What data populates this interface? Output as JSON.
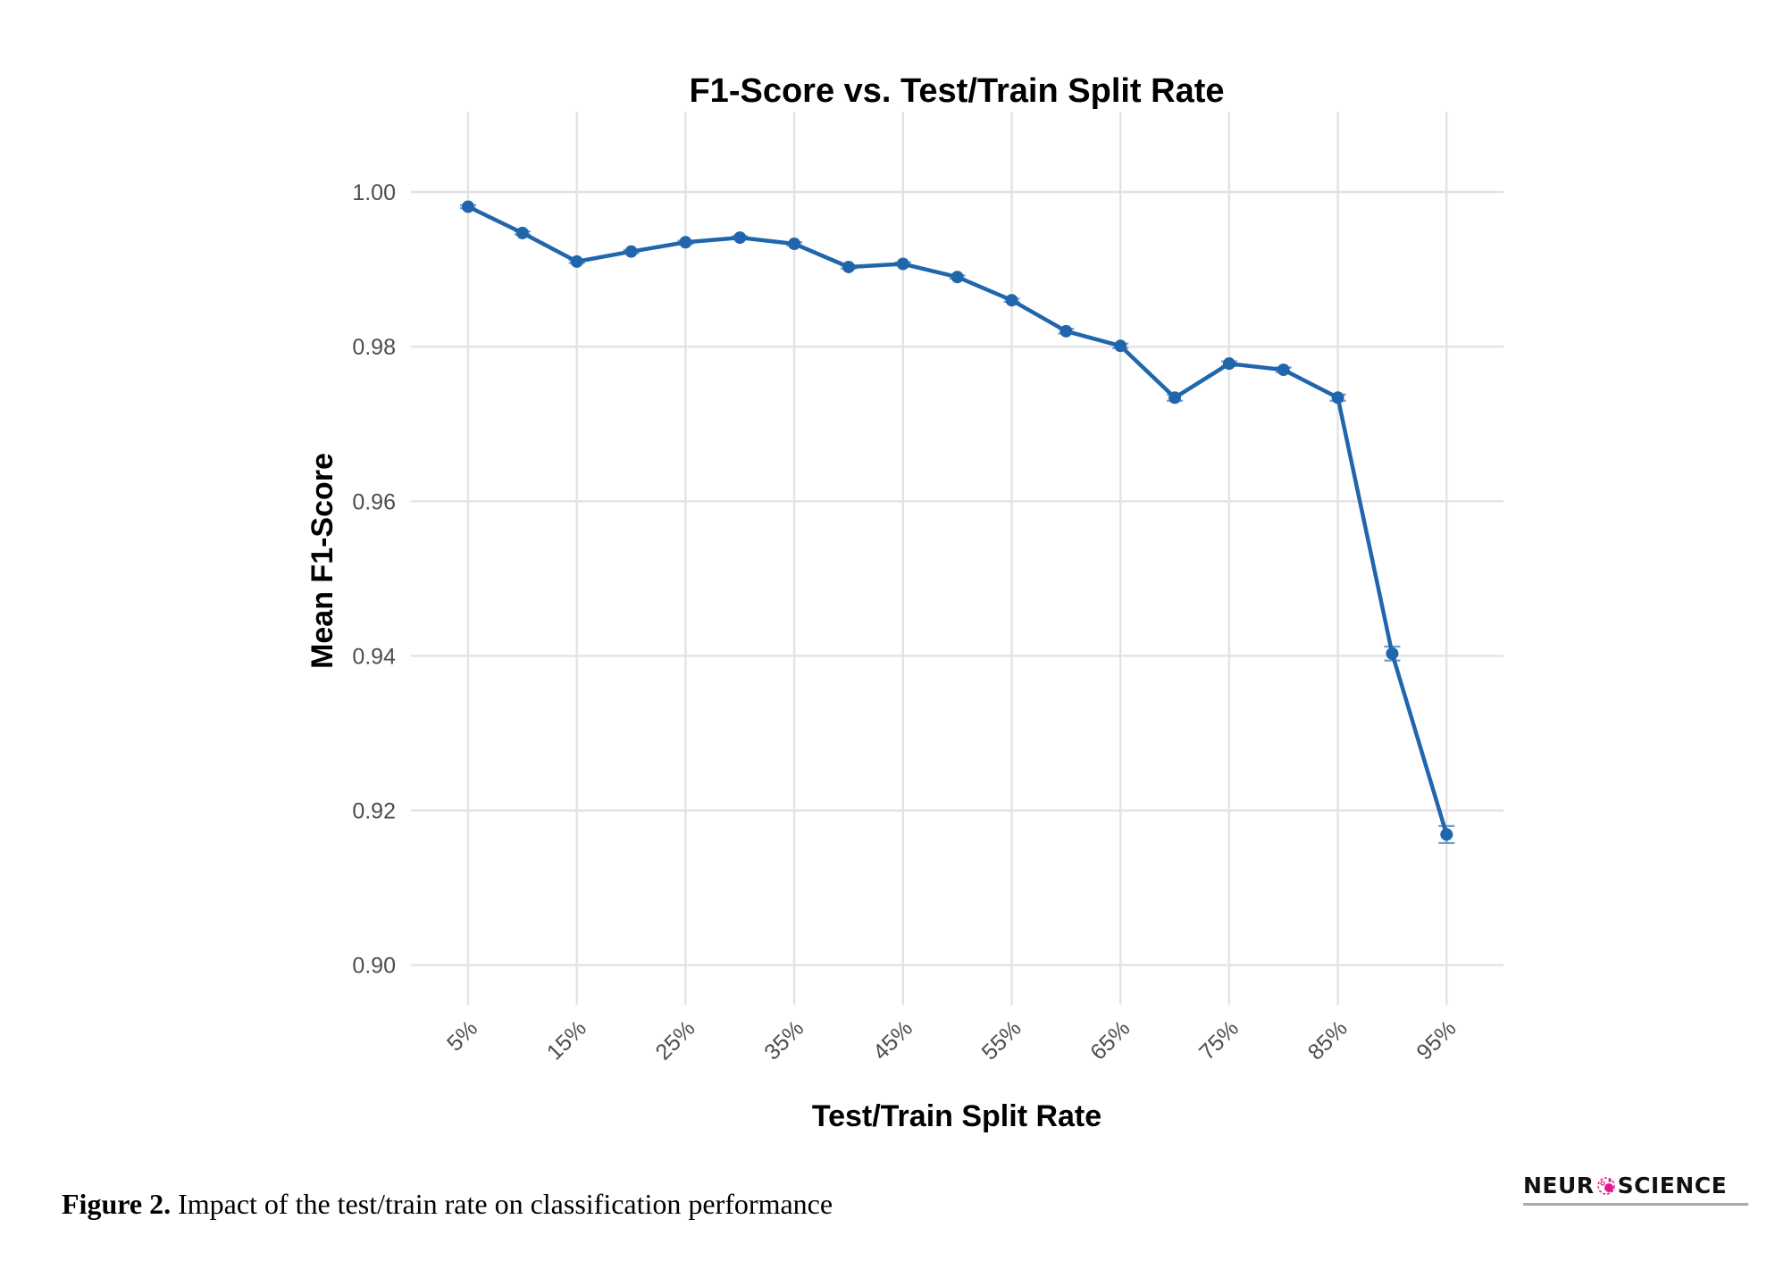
{
  "chart_data": {
    "type": "line",
    "title": "F1-Score vs. Test/Train Split Rate",
    "xlabel": "Test/Train Split Rate",
    "ylabel": "Mean F1-Score",
    "x": [
      "5%",
      "10%",
      "15%",
      "20%",
      "25%",
      "30%",
      "35%",
      "40%",
      "45%",
      "50%",
      "55%",
      "60%",
      "65%",
      "70%",
      "75%",
      "80%",
      "85%",
      "90%",
      "95%"
    ],
    "x_tick_labels": [
      "5%",
      "15%",
      "25%",
      "35%",
      "45%",
      "55%",
      "65%",
      "75%",
      "85%",
      "95%"
    ],
    "y_tick_labels": [
      "0.90",
      "0.92",
      "0.94",
      "0.96",
      "0.98",
      "1.00"
    ],
    "y_ticks": [
      0.9,
      0.92,
      0.94,
      0.96,
      0.98,
      1.0
    ],
    "ylim": [
      0.8965,
      1.0103
    ],
    "grid": true,
    "legend": "none",
    "series": [
      {
        "name": "Mean F1-Score",
        "color": "#2166ac",
        "error_bar_color": "#6f9ccf",
        "values": [
          0.9981,
          0.9947,
          0.991,
          0.9923,
          0.9935,
          0.9941,
          0.9933,
          0.9903,
          0.9907,
          0.989,
          0.986,
          0.982,
          0.9801,
          0.9734,
          0.9778,
          0.977,
          0.9734,
          0.9403,
          0.9169
        ],
        "error": [
          0.0002,
          0.0002,
          0.0002,
          0.0002,
          0.0002,
          0.0002,
          0.0002,
          0.0002,
          0.0002,
          0.0002,
          0.0002,
          0.0003,
          0.0003,
          0.0004,
          0.0003,
          0.0003,
          0.0004,
          0.0009,
          0.0011
        ]
      }
    ]
  },
  "caption": {
    "label": "Figure 2.",
    "text": " Impact of the test/train rate on classification performance"
  },
  "logo": {
    "left_text": "NEUR",
    "right_text": "SCIENCE",
    "mark_icon": "neuron-cell-icon",
    "mark_color": "#e5168c"
  }
}
